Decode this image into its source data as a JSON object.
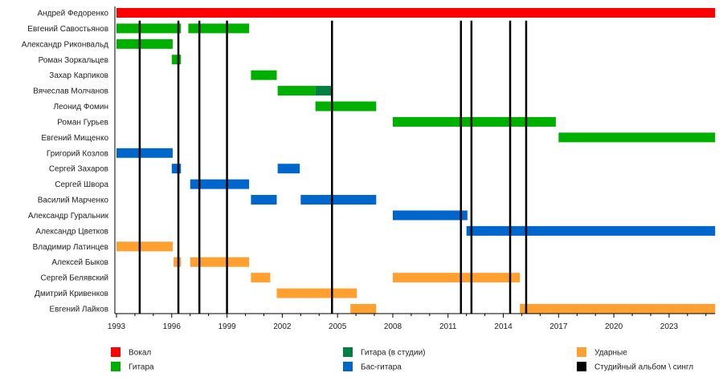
{
  "chart_data": {
    "type": "timeline",
    "xlim": [
      1993,
      2025.5
    ],
    "x_ticks": [
      1993,
      1996,
      1999,
      2002,
      2005,
      2008,
      2011,
      2014,
      2017,
      2020,
      2023
    ],
    "minor_tick_step": 1,
    "colors": {
      "vocal": "#ff0000",
      "guitar": "#00b000",
      "guitar_studio": "#008040",
      "bass": "#0066cc",
      "drums": "#ffa030",
      "album": "#000000"
    },
    "members": [
      {
        "name": "Андрей Федоренко",
        "periods": [
          {
            "role": "vocal",
            "start": 1993,
            "end": 2025.5
          }
        ]
      },
      {
        "name": "Евгений Савостьянов",
        "periods": [
          {
            "role": "guitar",
            "start": 1993,
            "end": 1996.5
          },
          {
            "role": "guitar",
            "start": 1996.9,
            "end": 2000.2
          }
        ]
      },
      {
        "name": "Александр Риконвальд",
        "periods": [
          {
            "role": "guitar",
            "start": 1993,
            "end": 1996.05
          }
        ]
      },
      {
        "name": "Роман Зоркальцев",
        "periods": [
          {
            "role": "guitar",
            "start": 1996,
            "end": 1996.5
          }
        ]
      },
      {
        "name": "Захар Карпиков",
        "periods": [
          {
            "role": "guitar",
            "start": 2000.3,
            "end": 2001.7
          }
        ]
      },
      {
        "name": "Вячеслав Молчанов",
        "periods": [
          {
            "role": "guitar",
            "start": 2001.75,
            "end": 2003.8
          },
          {
            "role": "guitar_studio",
            "start": 2003.8,
            "end": 2004.7
          }
        ]
      },
      {
        "name": "Леонид Фомин",
        "periods": [
          {
            "role": "guitar",
            "start": 2003.8,
            "end": 2007.1
          }
        ]
      },
      {
        "name": "Роман Гурьев",
        "periods": [
          {
            "role": "guitar",
            "start": 2008,
            "end": 2016.85
          }
        ]
      },
      {
        "name": "Евгений Мищенко",
        "periods": [
          {
            "role": "guitar",
            "start": 2017,
            "end": 2025.5
          }
        ]
      },
      {
        "name": "Григорий Козлов",
        "periods": [
          {
            "role": "bass",
            "start": 1993,
            "end": 1996.05
          }
        ]
      },
      {
        "name": "Сергей Захаров",
        "periods": [
          {
            "role": "bass",
            "start": 1996,
            "end": 1996.5
          },
          {
            "role": "bass",
            "start": 2001.75,
            "end": 2002.95
          }
        ]
      },
      {
        "name": "Сергей Швора",
        "periods": [
          {
            "role": "bass",
            "start": 1997,
            "end": 2000.2
          }
        ]
      },
      {
        "name": "Василий Марченко",
        "periods": [
          {
            "role": "bass",
            "start": 2000.3,
            "end": 2001.7
          },
          {
            "role": "bass",
            "start": 2003,
            "end": 2007.1
          }
        ]
      },
      {
        "name": "Александр Гуральник",
        "periods": [
          {
            "role": "bass",
            "start": 2008,
            "end": 2012.05
          }
        ]
      },
      {
        "name": "Александр Цветков",
        "periods": [
          {
            "role": "bass",
            "start": 2012,
            "end": 2025.5
          }
        ]
      },
      {
        "name": "Владимир Латинцев",
        "periods": [
          {
            "role": "drums",
            "start": 1993,
            "end": 1996.05
          }
        ]
      },
      {
        "name": "Алексей Быков",
        "periods": [
          {
            "role": "drums",
            "start": 1996.1,
            "end": 1996.5
          },
          {
            "role": "drums",
            "start": 1997,
            "end": 2000.2
          }
        ]
      },
      {
        "name": "Сергей Белявский",
        "periods": [
          {
            "role": "drums",
            "start": 2000.3,
            "end": 2001.35
          },
          {
            "role": "drums",
            "start": 2008,
            "end": 2014.9
          }
        ]
      },
      {
        "name": "Дмитрий Кривенков",
        "periods": [
          {
            "role": "drums",
            "start": 2001.7,
            "end": 2006.05
          }
        ]
      },
      {
        "name": "Евгений Лайков",
        "periods": [
          {
            "role": "drums",
            "start": 2005.7,
            "end": 2007.1
          },
          {
            "role": "drums",
            "start": 2014.9,
            "end": 2025.5
          }
        ]
      }
    ],
    "albums": [
      1994.26,
      1996.36,
      1997.5,
      1999.0,
      2004.7,
      2011.7,
      2012.27,
      2014.37,
      2015.24
    ],
    "legend_placement": "bottom",
    "legend": [
      {
        "role": "vocal",
        "label": "Вокал"
      },
      {
        "role": "guitar",
        "label": "Гитара"
      },
      {
        "role": "guitar_studio",
        "label": "Гитара (в студии)"
      },
      {
        "role": "bass",
        "label": "Бас-гитара"
      },
      {
        "role": "drums",
        "label": "Ударные"
      },
      {
        "role": "album",
        "label": "Студийный альбом \\ сингл"
      }
    ]
  }
}
